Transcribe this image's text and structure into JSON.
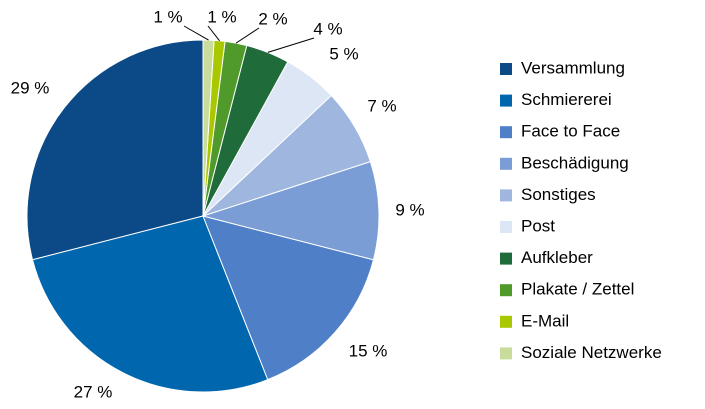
{
  "chart_data": {
    "type": "pie",
    "categories": [
      "Versammlung",
      "Schmiererei",
      "Face to Face",
      "Beschädigung",
      "Sonstiges",
      "Post",
      "Aufkleber",
      "Plakate / Zettel",
      "E-Mail",
      "Soziale Netzwerke"
    ],
    "values": [
      29,
      27,
      15,
      9,
      7,
      5,
      4,
      2,
      1,
      1
    ],
    "value_labels": [
      "29 %",
      "27 %",
      "15 %",
      "9 %",
      "7 %",
      "5 %",
      "4 %",
      "2 %",
      "1 %",
      "1 %"
    ],
    "colors": [
      "#0b4a86",
      "#0066ad",
      "#4f7fc6",
      "#7a9dd6",
      "#9fb6df",
      "#dde6f4",
      "#1f6b3a",
      "#4f9a2a",
      "#a9c800",
      "#c9dc9c"
    ],
    "legend": "right"
  }
}
